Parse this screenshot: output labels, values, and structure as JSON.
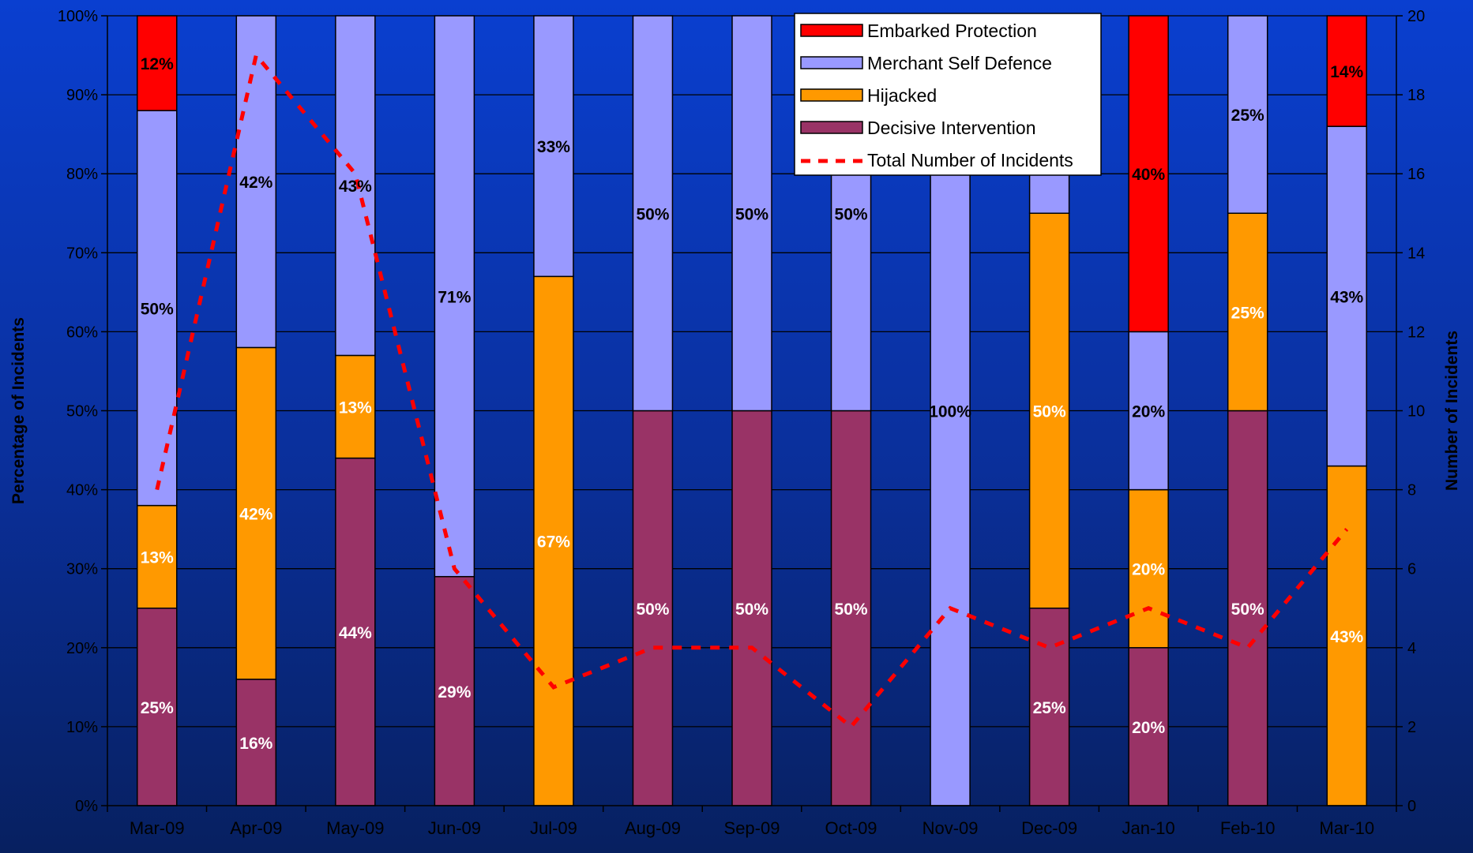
{
  "chart_data": {
    "type": "bar",
    "stacked": true,
    "categories": [
      "Mar-09",
      "Apr-09",
      "May-09",
      "Jun-09",
      "Jul-09",
      "Aug-09",
      "Sep-09",
      "Oct-09",
      "Nov-09",
      "Dec-09",
      "Jan-10",
      "Feb-10",
      "Mar-10"
    ],
    "ylabel": "Percentage of Incidents",
    "y2label": "Number of Incidents",
    "ylim": [
      0,
      100
    ],
    "y2lim": [
      0,
      20
    ],
    "y_ticks": [
      "0%",
      "10%",
      "20%",
      "30%",
      "40%",
      "50%",
      "60%",
      "70%",
      "80%",
      "90%",
      "100%"
    ],
    "y2_ticks": [
      "0",
      "2",
      "4",
      "6",
      "8",
      "10",
      "12",
      "14",
      "16",
      "18",
      "20"
    ],
    "grid": true,
    "legend_position": "top-right",
    "series": [
      {
        "name": "Decisive Intervention",
        "color": "#993366",
        "label_color": "#ffffff",
        "values": [
          25,
          16,
          44,
          29,
          0,
          50,
          50,
          50,
          0,
          25,
          20,
          50,
          0
        ],
        "labels": [
          "25%",
          "16%",
          "44%",
          "29%",
          "",
          "50%",
          "50%",
          "50%",
          "",
          "25%",
          "20%",
          "50%",
          ""
        ]
      },
      {
        "name": "Hijacked",
        "color": "#ff9900",
        "label_color": "#ffffff",
        "values": [
          13,
          42,
          13,
          0,
          67,
          0,
          0,
          0,
          0,
          50,
          20,
          25,
          43
        ],
        "labels": [
          "13%",
          "42%",
          "13%",
          "",
          "67%",
          "",
          "",
          "",
          "",
          "50%",
          "20%",
          "25%",
          "43%"
        ]
      },
      {
        "name": "Merchant Self Defence",
        "color": "#9999ff",
        "label_color": "#000000",
        "values": [
          50,
          42,
          43,
          71,
          33,
          50,
          50,
          50,
          100,
          25,
          20,
          25,
          43
        ],
        "labels": [
          "50%",
          "42%",
          "43%",
          "71%",
          "33%",
          "50%",
          "50%",
          "50%",
          "100%",
          "",
          "20%",
          "25%",
          "43%"
        ]
      },
      {
        "name": "Embarked Protection",
        "color": "#ff0000",
        "label_color": "#000000",
        "values": [
          12,
          0,
          0,
          0,
          0,
          0,
          0,
          0,
          0,
          0,
          40,
          0,
          14
        ],
        "labels": [
          "12%",
          "",
          "",
          "",
          "",
          "",
          "",
          "",
          "",
          "",
          "40%",
          "",
          "14%"
        ]
      }
    ],
    "line_series": {
      "name": "Total Number of Incidents",
      "color": "#ff0000",
      "style": "dashed",
      "axis": "secondary",
      "values": [
        8,
        19,
        16,
        6,
        3,
        4,
        4,
        2,
        5,
        4,
        5,
        4,
        7
      ]
    },
    "legend": [
      {
        "label": "Embarked Protection",
        "color": "#ff0000",
        "kind": "box"
      },
      {
        "label": "Merchant Self Defence",
        "color": "#9999ff",
        "kind": "box"
      },
      {
        "label": "Hijacked",
        "color": "#ff9900",
        "kind": "box"
      },
      {
        "label": "Decisive Intervention",
        "color": "#993366",
        "kind": "box"
      },
      {
        "label": "Total Number of Incidents",
        "color": "#ff0000",
        "kind": "dashed-line"
      }
    ]
  }
}
